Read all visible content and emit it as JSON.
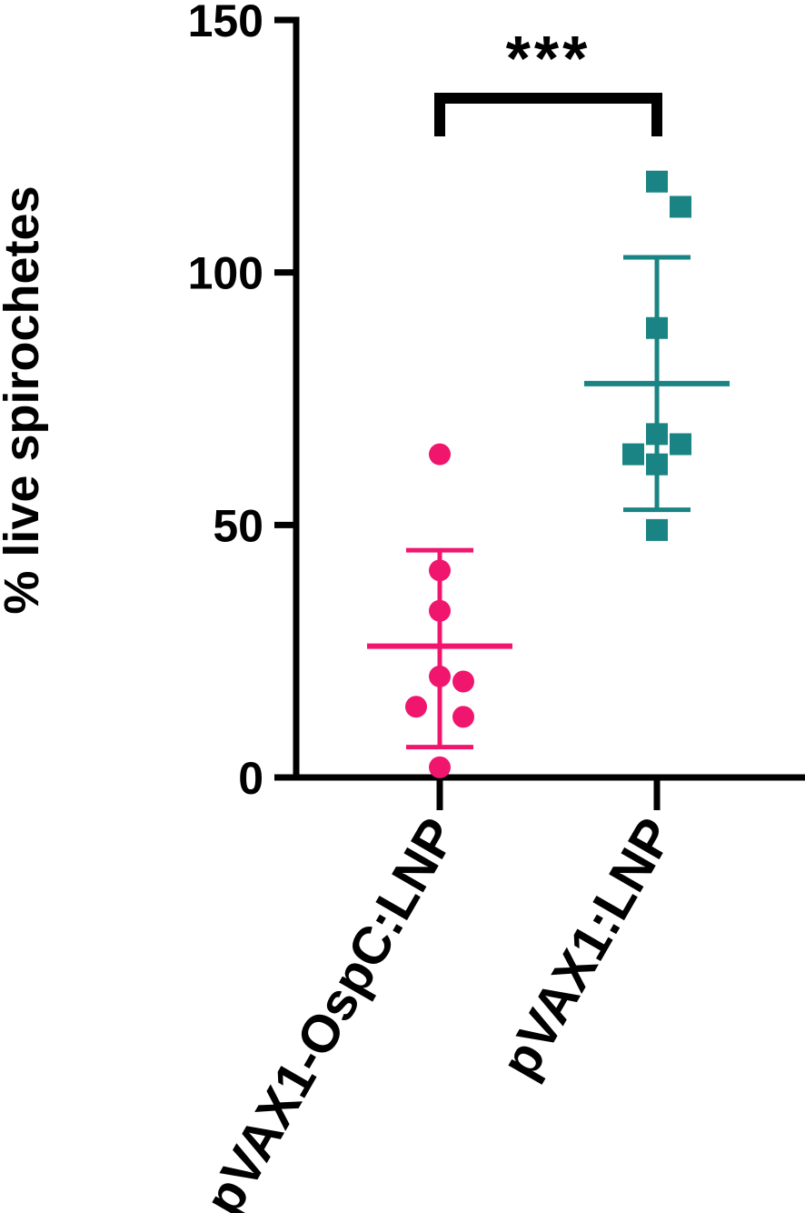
{
  "chart_data": {
    "type": "scatter",
    "ylabel": "% live spirochetes",
    "xlabel": "",
    "ylim": [
      0,
      150
    ],
    "yticks": [
      0,
      50,
      100,
      150
    ],
    "categories": [
      "pVAX1-OspC:LNP",
      "pVAX1:LNP"
    ],
    "series": [
      {
        "category": "pVAX1-OspC:LNP",
        "marker": "circle",
        "color": "#F0166E",
        "values": [
          64,
          41,
          33,
          20,
          19,
          14,
          12,
          2
        ],
        "mean": 26,
        "sd_upper": 45,
        "sd_lower": 6
      },
      {
        "category": "pVAX1:LNP",
        "marker": "square",
        "color": "#1A8383",
        "values": [
          118,
          113,
          89,
          68,
          66,
          64,
          62,
          49
        ],
        "mean": 78,
        "sd_upper": 103,
        "sd_lower": 53
      }
    ],
    "significance": {
      "label": "***",
      "between": [
        "pVAX1-OspC:LNP",
        "pVAX1:LNP"
      ]
    },
    "grid": false
  }
}
